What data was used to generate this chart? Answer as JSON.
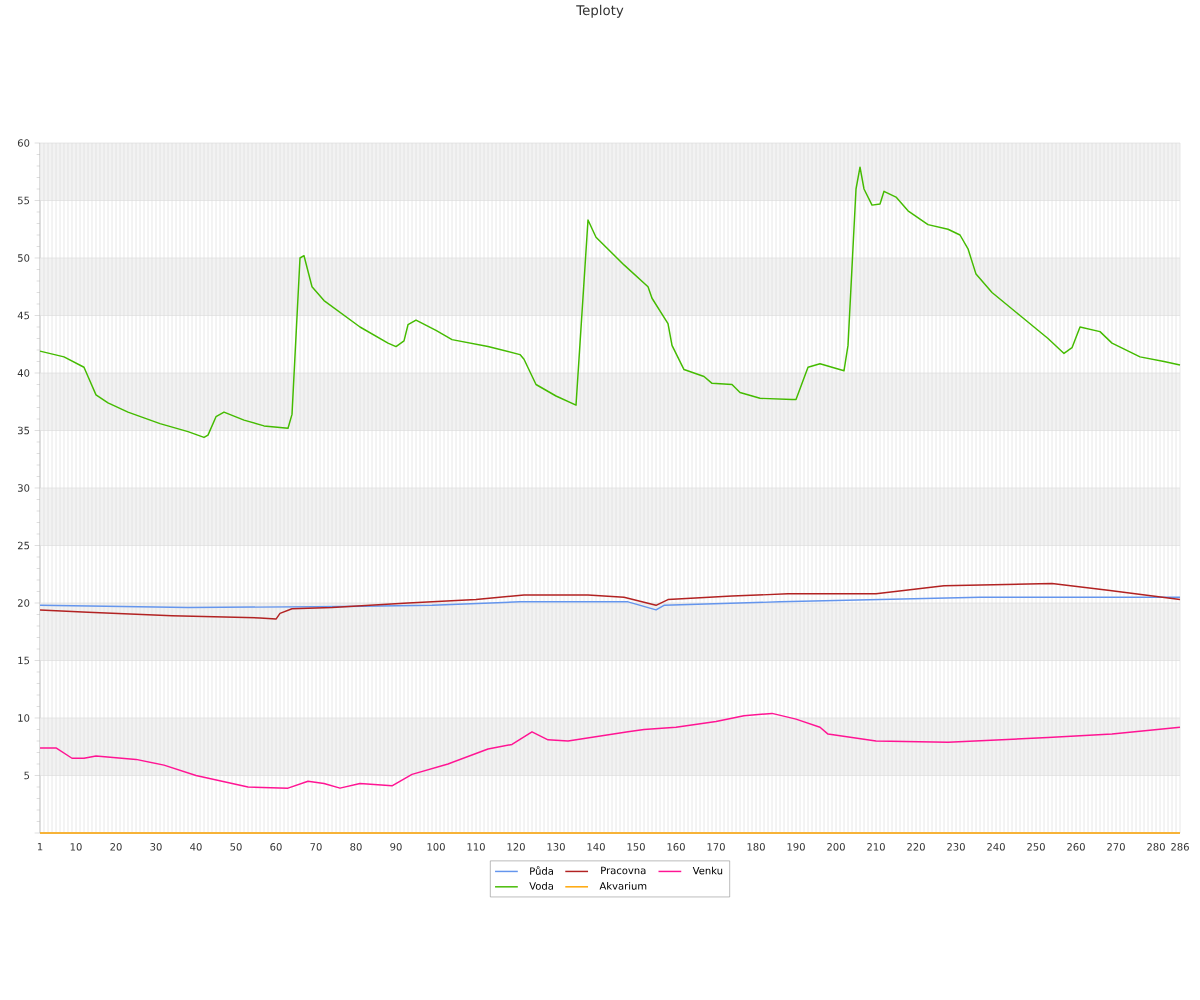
{
  "chart_data": {
    "type": "line",
    "title": "Teploty",
    "xlim": [
      1,
      286
    ],
    "ylim": [
      0,
      60
    ],
    "xticks": [
      1,
      {
        "value": 2,
        "label": null
      },
      {
        "value": 3,
        "label": null
      },
      {
        "value": 4,
        "label": null
      },
      {
        "value": 5,
        "label": null
      },
      {
        "value": 6,
        "label": null
      },
      {
        "value": 7,
        "label": null
      },
      {
        "value": 8,
        "label": null
      },
      {
        "value": 9,
        "label": null
      },
      10,
      {
        "value": 11,
        "label": null
      },
      {
        "value": 12,
        "label": null
      },
      {
        "value": 13,
        "label": null
      },
      {
        "value": 14,
        "label": null
      },
      {
        "value": 15,
        "label": null
      },
      {
        "value": 16,
        "label": null
      },
      {
        "value": 17,
        "label": null
      },
      {
        "value": 18,
        "label": null
      },
      {
        "value": 19,
        "label": null
      },
      20,
      {
        "value": 21,
        "label": null
      },
      {
        "value": 22,
        "label": null
      },
      {
        "value": 23,
        "label": null
      },
      {
        "value": 24,
        "label": null
      },
      {
        "value": 25,
        "label": null
      },
      {
        "value": 26,
        "label": null
      },
      {
        "value": 27,
        "label": null
      },
      {
        "value": 28,
        "label": null
      },
      {
        "value": 29,
        "label": null
      },
      30,
      {
        "value": 31,
        "label": null
      },
      {
        "value": 32,
        "label": null
      },
      {
        "value": 33,
        "label": null
      },
      {
        "value": 34,
        "label": null
      },
      {
        "value": 35,
        "label": null
      },
      {
        "value": 36,
        "label": null
      },
      {
        "value": 37,
        "label": null
      },
      {
        "value": 38,
        "label": null
      },
      {
        "value": 39,
        "label": null
      },
      40,
      {
        "value": 41,
        "label": null
      },
      {
        "value": 42,
        "label": null
      },
      {
        "value": 43,
        "label": null
      },
      {
        "value": 44,
        "label": null
      },
      {
        "value": 45,
        "label": null
      },
      {
        "value": 46,
        "label": null
      },
      {
        "value": 47,
        "label": null
      },
      {
        "value": 48,
        "label": null
      },
      {
        "value": 49,
        "label": null
      },
      50,
      {
        "value": 51,
        "label": null
      },
      {
        "value": 52,
        "label": null
      },
      {
        "value": 53,
        "label": null
      },
      {
        "value": 54,
        "label": null
      },
      {
        "value": 55,
        "label": null
      },
      {
        "value": 56,
        "label": null
      },
      {
        "value": 57,
        "label": null
      },
      {
        "value": 58,
        "label": null
      },
      {
        "value": 59,
        "label": null
      },
      60,
      {
        "value": 61,
        "label": null
      },
      {
        "value": 62,
        "label": null
      },
      {
        "value": 63,
        "label": null
      },
      {
        "value": 64,
        "label": null
      },
      {
        "value": 65,
        "label": null
      },
      {
        "value": 66,
        "label": null
      },
      {
        "value": 67,
        "label": null
      },
      {
        "value": 68,
        "label": null
      },
      {
        "value": 69,
        "label": null
      },
      70,
      {
        "value": 71,
        "label": null
      },
      {
        "value": 72,
        "label": null
      },
      {
        "value": 73,
        "label": null
      },
      {
        "value": 74,
        "label": null
      },
      {
        "value": 75,
        "label": null
      },
      {
        "value": 76,
        "label": null
      },
      {
        "value": 77,
        "label": null
      },
      {
        "value": 78,
        "label": null
      },
      {
        "value": 79,
        "label": null
      },
      80,
      {
        "value": 81,
        "label": null
      },
      {
        "value": 82,
        "label": null
      },
      {
        "value": 83,
        "label": null
      },
      {
        "value": 84,
        "label": null
      },
      {
        "value": 85,
        "label": null
      },
      {
        "value": 86,
        "label": null
      },
      {
        "value": 87,
        "label": null
      },
      {
        "value": 88,
        "label": null
      },
      {
        "value": 89,
        "label": null
      },
      90,
      {
        "value": 91,
        "label": null
      },
      {
        "value": 92,
        "label": null
      },
      {
        "value": 93,
        "label": null
      },
      {
        "value": 94,
        "label": null
      },
      {
        "value": 95,
        "label": null
      },
      {
        "value": 96,
        "label": null
      },
      {
        "value": 97,
        "label": null
      },
      {
        "value": 98,
        "label": null
      },
      {
        "value": 99,
        "label": null
      },
      100,
      {
        "value": 101,
        "label": null
      },
      {
        "value": 102,
        "label": null
      },
      {
        "value": 103,
        "label": null
      },
      {
        "value": 104,
        "label": null
      },
      {
        "value": 105,
        "label": null
      },
      {
        "value": 106,
        "label": null
      },
      {
        "value": 107,
        "label": null
      },
      {
        "value": 108,
        "label": null
      },
      {
        "value": 109,
        "label": null
      },
      110,
      {
        "value": 111,
        "label": null
      },
      {
        "value": 112,
        "label": null
      },
      {
        "value": 113,
        "label": null
      },
      {
        "value": 114,
        "label": null
      },
      {
        "value": 115,
        "label": null
      },
      {
        "value": 116,
        "label": null
      },
      {
        "value": 117,
        "label": null
      },
      {
        "value": 118,
        "label": null
      },
      {
        "value": 119,
        "label": null
      },
      120,
      {
        "value": 121,
        "label": null
      },
      {
        "value": 122,
        "label": null
      },
      {
        "value": 123,
        "label": null
      },
      {
        "value": 124,
        "label": null
      },
      {
        "value": 125,
        "label": null
      },
      {
        "value": 126,
        "label": null
      },
      {
        "value": 127,
        "label": null
      },
      {
        "value": 128,
        "label": null
      },
      {
        "value": 129,
        "label": null
      },
      130,
      {
        "value": 131,
        "label": null
      },
      {
        "value": 132,
        "label": null
      },
      {
        "value": 133,
        "label": null
      },
      {
        "value": 134,
        "label": null
      },
      {
        "value": 135,
        "label": null
      },
      {
        "value": 136,
        "label": null
      },
      {
        "value": 137,
        "label": null
      },
      {
        "value": 138,
        "label": null
      },
      {
        "value": 139,
        "label": null
      },
      140,
      {
        "value": 141,
        "label": null
      },
      {
        "value": 142,
        "label": null
      },
      {
        "value": 143,
        "label": null
      },
      {
        "value": 144,
        "label": null
      },
      {
        "value": 145,
        "label": null
      },
      {
        "value": 146,
        "label": null
      },
      {
        "value": 147,
        "label": null
      },
      {
        "value": 148,
        "label": null
      },
      {
        "value": 149,
        "label": null
      },
      150,
      {
        "value": 151,
        "label": null
      },
      {
        "value": 152,
        "label": null
      },
      {
        "value": 153,
        "label": null
      },
      {
        "value": 154,
        "label": null
      },
      {
        "value": 155,
        "label": null
      },
      {
        "value": 156,
        "label": null
      },
      {
        "value": 157,
        "label": null
      },
      {
        "value": 158,
        "label": null
      },
      {
        "value": 159,
        "label": null
      },
      160,
      {
        "value": 161,
        "label": null
      },
      {
        "value": 162,
        "label": null
      },
      {
        "value": 163,
        "label": null
      },
      {
        "value": 164,
        "label": null
      },
      {
        "value": 165,
        "label": null
      },
      {
        "value": 166,
        "label": null
      },
      {
        "value": 167,
        "label": null
      },
      {
        "value": 168,
        "label": null
      },
      {
        "value": 169,
        "label": null
      },
      170,
      {
        "value": 171,
        "label": null
      },
      {
        "value": 172,
        "label": null
      },
      {
        "value": 173,
        "label": null
      },
      {
        "value": 174,
        "label": null
      },
      {
        "value": 175,
        "label": null
      },
      {
        "value": 176,
        "label": null
      },
      {
        "value": 177,
        "label": null
      },
      {
        "value": 178,
        "label": null
      },
      {
        "value": 179,
        "label": null
      },
      180,
      {
        "value": 181,
        "label": null
      },
      {
        "value": 182,
        "label": null
      },
      {
        "value": 183,
        "label": null
      },
      {
        "value": 184,
        "label": null
      },
      {
        "value": 185,
        "label": null
      },
      {
        "value": 186,
        "label": null
      },
      {
        "value": 187,
        "label": null
      },
      {
        "value": 188,
        "label": null
      },
      {
        "value": 189,
        "label": null
      },
      190,
      {
        "value": 191,
        "label": null
      },
      {
        "value": 192,
        "label": null
      },
      {
        "value": 193,
        "label": null
      },
      {
        "value": 194,
        "label": null
      },
      {
        "value": 195,
        "label": null
      },
      {
        "value": 196,
        "label": null
      },
      {
        "value": 197,
        "label": null
      },
      {
        "value": 198,
        "label": null
      },
      {
        "value": 199,
        "label": null
      },
      200,
      {
        "value": 201,
        "label": null
      },
      {
        "value": 202,
        "label": null
      },
      {
        "value": 203,
        "label": null
      },
      {
        "value": 204,
        "label": null
      },
      {
        "value": 205,
        "label": null
      },
      {
        "value": 206,
        "label": null
      },
      {
        "value": 207,
        "label": null
      },
      {
        "value": 208,
        "label": null
      },
      {
        "value": 209,
        "label": null
      },
      210,
      {
        "value": 211,
        "label": null
      },
      {
        "value": 212,
        "label": null
      },
      {
        "value": 213,
        "label": null
      },
      {
        "value": 214,
        "label": null
      },
      {
        "value": 215,
        "label": null
      },
      {
        "value": 216,
        "label": null
      },
      {
        "value": 217,
        "label": null
      },
      {
        "value": 218,
        "label": null
      },
      {
        "value": 219,
        "label": null
      },
      220,
      {
        "value": 221,
        "label": null
      },
      {
        "value": 222,
        "label": null
      },
      {
        "value": 223,
        "label": null
      },
      {
        "value": 224,
        "label": null
      },
      {
        "value": 225,
        "label": null
      },
      {
        "value": 226,
        "label": null
      },
      {
        "value": 227,
        "label": null
      },
      {
        "value": 228,
        "label": null
      },
      {
        "value": 229,
        "label": null
      },
      230,
      {
        "value": 231,
        "label": null
      },
      {
        "value": 232,
        "label": null
      },
      {
        "value": 233,
        "label": null
      },
      {
        "value": 234,
        "label": null
      },
      {
        "value": 235,
        "label": null
      },
      {
        "value": 236,
        "label": null
      },
      {
        "value": 237,
        "label": null
      },
      {
        "value": 238,
        "label": null
      },
      {
        "value": 239,
        "label": null
      },
      240,
      {
        "value": 241,
        "label": null
      },
      {
        "value": 242,
        "label": null
      },
      {
        "value": 243,
        "label": null
      },
      {
        "value": 244,
        "label": null
      },
      {
        "value": 245,
        "label": null
      },
      {
        "value": 246,
        "label": null
      },
      {
        "value": 247,
        "label": null
      },
      {
        "value": 248,
        "label": null
      },
      {
        "value": 249,
        "label": null
      },
      250,
      {
        "value": 251,
        "label": null
      },
      {
        "value": 252,
        "label": null
      },
      {
        "value": 253,
        "label": null
      },
      {
        "value": 254,
        "label": null
      },
      {
        "value": 255,
        "label": null
      },
      {
        "value": 256,
        "label": null
      },
      {
        "value": 257,
        "label": null
      },
      {
        "value": 258,
        "label": null
      },
      {
        "value": 259,
        "label": null
      },
      260,
      {
        "value": 261,
        "label": null
      },
      {
        "value": 262,
        "label": null
      },
      {
        "value": 263,
        "label": null
      },
      {
        "value": 264,
        "label": null
      },
      {
        "value": 265,
        "label": null
      },
      {
        "value": 266,
        "label": null
      },
      {
        "value": 267,
        "label": null
      },
      {
        "value": 268,
        "label": null
      },
      {
        "value": 269,
        "label": null
      },
      270,
      {
        "value": 271,
        "label": null
      },
      {
        "value": 272,
        "label": null
      },
      {
        "value": 273,
        "label": null
      },
      {
        "value": 274,
        "label": null
      },
      {
        "value": 275,
        "label": null
      },
      {
        "value": 276,
        "label": null
      },
      {
        "value": 277,
        "label": null
      },
      {
        "value": 278,
        "label": null
      },
      {
        "value": 279,
        "label": null
      },
      280,
      {
        "value": 281,
        "label": null
      },
      {
        "value": 282,
        "label": null
      },
      {
        "value": 283,
        "label": null
      },
      {
        "value": 284,
        "label": null
      },
      {
        "value": 285,
        "label": null
      },
      286
    ],
    "yticks": [
      {
        "value": 0,
        "label": null
      },
      5,
      10,
      15,
      20,
      25,
      30,
      35,
      40,
      45,
      50,
      55,
      60
    ],
    "grid": true,
    "legend": "bottom",
    "bands": [
      {
        "axis": "y",
        "from": 5,
        "to": 10,
        "color": "#f2f2f2"
      },
      {
        "axis": "y",
        "from": 15,
        "to": 20,
        "color": "#f2f2f2"
      },
      {
        "axis": "y",
        "from": 25,
        "to": 30,
        "color": "#f2f2f2"
      },
      {
        "axis": "y",
        "from": 35,
        "to": 40,
        "color": "#f2f2f2"
      },
      {
        "axis": "y",
        "from": 45,
        "to": 50,
        "color": "#f2f2f2"
      },
      {
        "axis": "y",
        "from": 55,
        "to": 60,
        "color": "#f2f2f2"
      }
    ],
    "series": [
      {
        "name": "Půda",
        "color": "#6495ed",
        "x": [
          1,
          38,
          77,
          99,
          121,
          148,
          155,
          157,
          186,
          236,
          286
        ],
        "values": [
          19.8,
          19.6,
          19.7,
          19.8,
          20.1,
          20.1,
          19.4,
          19.8,
          20.1,
          20.5,
          20.5
        ]
      },
      {
        "name": "Pracovna",
        "color": "#b22222",
        "x": [
          1,
          13,
          34,
          56,
          60,
          61,
          64,
          74,
          93,
          110,
          122,
          138,
          147,
          155,
          158,
          174,
          188,
          210,
          227,
          254,
          268,
          286
        ],
        "values": [
          19.4,
          19.2,
          18.9,
          18.7,
          18.6,
          19.1,
          19.5,
          19.6,
          20.0,
          20.3,
          20.7,
          20.7,
          20.5,
          19.8,
          20.3,
          20.6,
          20.8,
          20.8,
          21.5,
          21.7,
          21.1,
          20.3
        ]
      },
      {
        "name": "Venku",
        "color": "#ff1493",
        "x": [
          1,
          5,
          9,
          12,
          15,
          25,
          32,
          40,
          53,
          63,
          68,
          72,
          76,
          81,
          89,
          94,
          103,
          113,
          119,
          124,
          128,
          133,
          148,
          152,
          160,
          170,
          177,
          184,
          190,
          196,
          198,
          210,
          228,
          253,
          269,
          286
        ],
        "values": [
          7.4,
          7.4,
          6.5,
          6.5,
          6.7,
          6.4,
          5.9,
          5.0,
          4.0,
          3.9,
          4.5,
          4.3,
          3.9,
          4.3,
          4.1,
          5.1,
          6.0,
          7.3,
          7.7,
          8.8,
          8.1,
          8.0,
          8.8,
          9.0,
          9.2,
          9.7,
          10.2,
          10.4,
          9.9,
          9.2,
          8.6,
          8.0,
          7.9,
          8.3,
          8.6,
          9.2
        ]
      },
      {
        "name": "Voda",
        "color": "#44bb00",
        "x": [
          1,
          7,
          12,
          13,
          15,
          18,
          23,
          31,
          38,
          42,
          43,
          45,
          47,
          52,
          57,
          63,
          64,
          66,
          67,
          69,
          72,
          81,
          88,
          90,
          92,
          93,
          95,
          100,
          104,
          113,
          121,
          122,
          125,
          130,
          135,
          138,
          140,
          147,
          153,
          154,
          158,
          159,
          162,
          167,
          169,
          174,
          176,
          181,
          189,
          190,
          193,
          196,
          202,
          203,
          205,
          206,
          207,
          209,
          211,
          212,
          215,
          218,
          223,
          228,
          231,
          233,
          235,
          239,
          246,
          253,
          257,
          259,
          261,
          266,
          269,
          276,
          282,
          286
        ],
        "values": [
          41.9,
          41.4,
          40.5,
          39.7,
          38.1,
          37.4,
          36.6,
          35.6,
          34.9,
          34.4,
          34.6,
          36.2,
          36.6,
          35.9,
          35.4,
          35.2,
          36.4,
          50.0,
          50.2,
          47.5,
          46.3,
          44.0,
          42.6,
          42.3,
          42.8,
          44.2,
          44.6,
          43.7,
          42.9,
          42.3,
          41.6,
          41.2,
          39.0,
          38.0,
          37.2,
          53.3,
          51.8,
          49.4,
          47.5,
          46.5,
          44.3,
          42.4,
          40.3,
          39.7,
          39.1,
          39.0,
          38.3,
          37.8,
          37.7,
          37.7,
          40.5,
          40.8,
          40.2,
          42.4,
          56.0,
          57.9,
          56.0,
          54.6,
          54.7,
          55.8,
          55.3,
          54.1,
          52.9,
          52.5,
          52.0,
          50.8,
          48.6,
          47.0,
          45.0,
          43.0,
          41.7,
          42.2,
          44.0,
          43.6,
          42.6,
          41.4,
          41.0,
          40.7
        ]
      },
      {
        "name": "Akvarium",
        "color": "#ffa500",
        "x": [
          1,
          286
        ],
        "values": [
          0,
          0
        ]
      }
    ]
  }
}
